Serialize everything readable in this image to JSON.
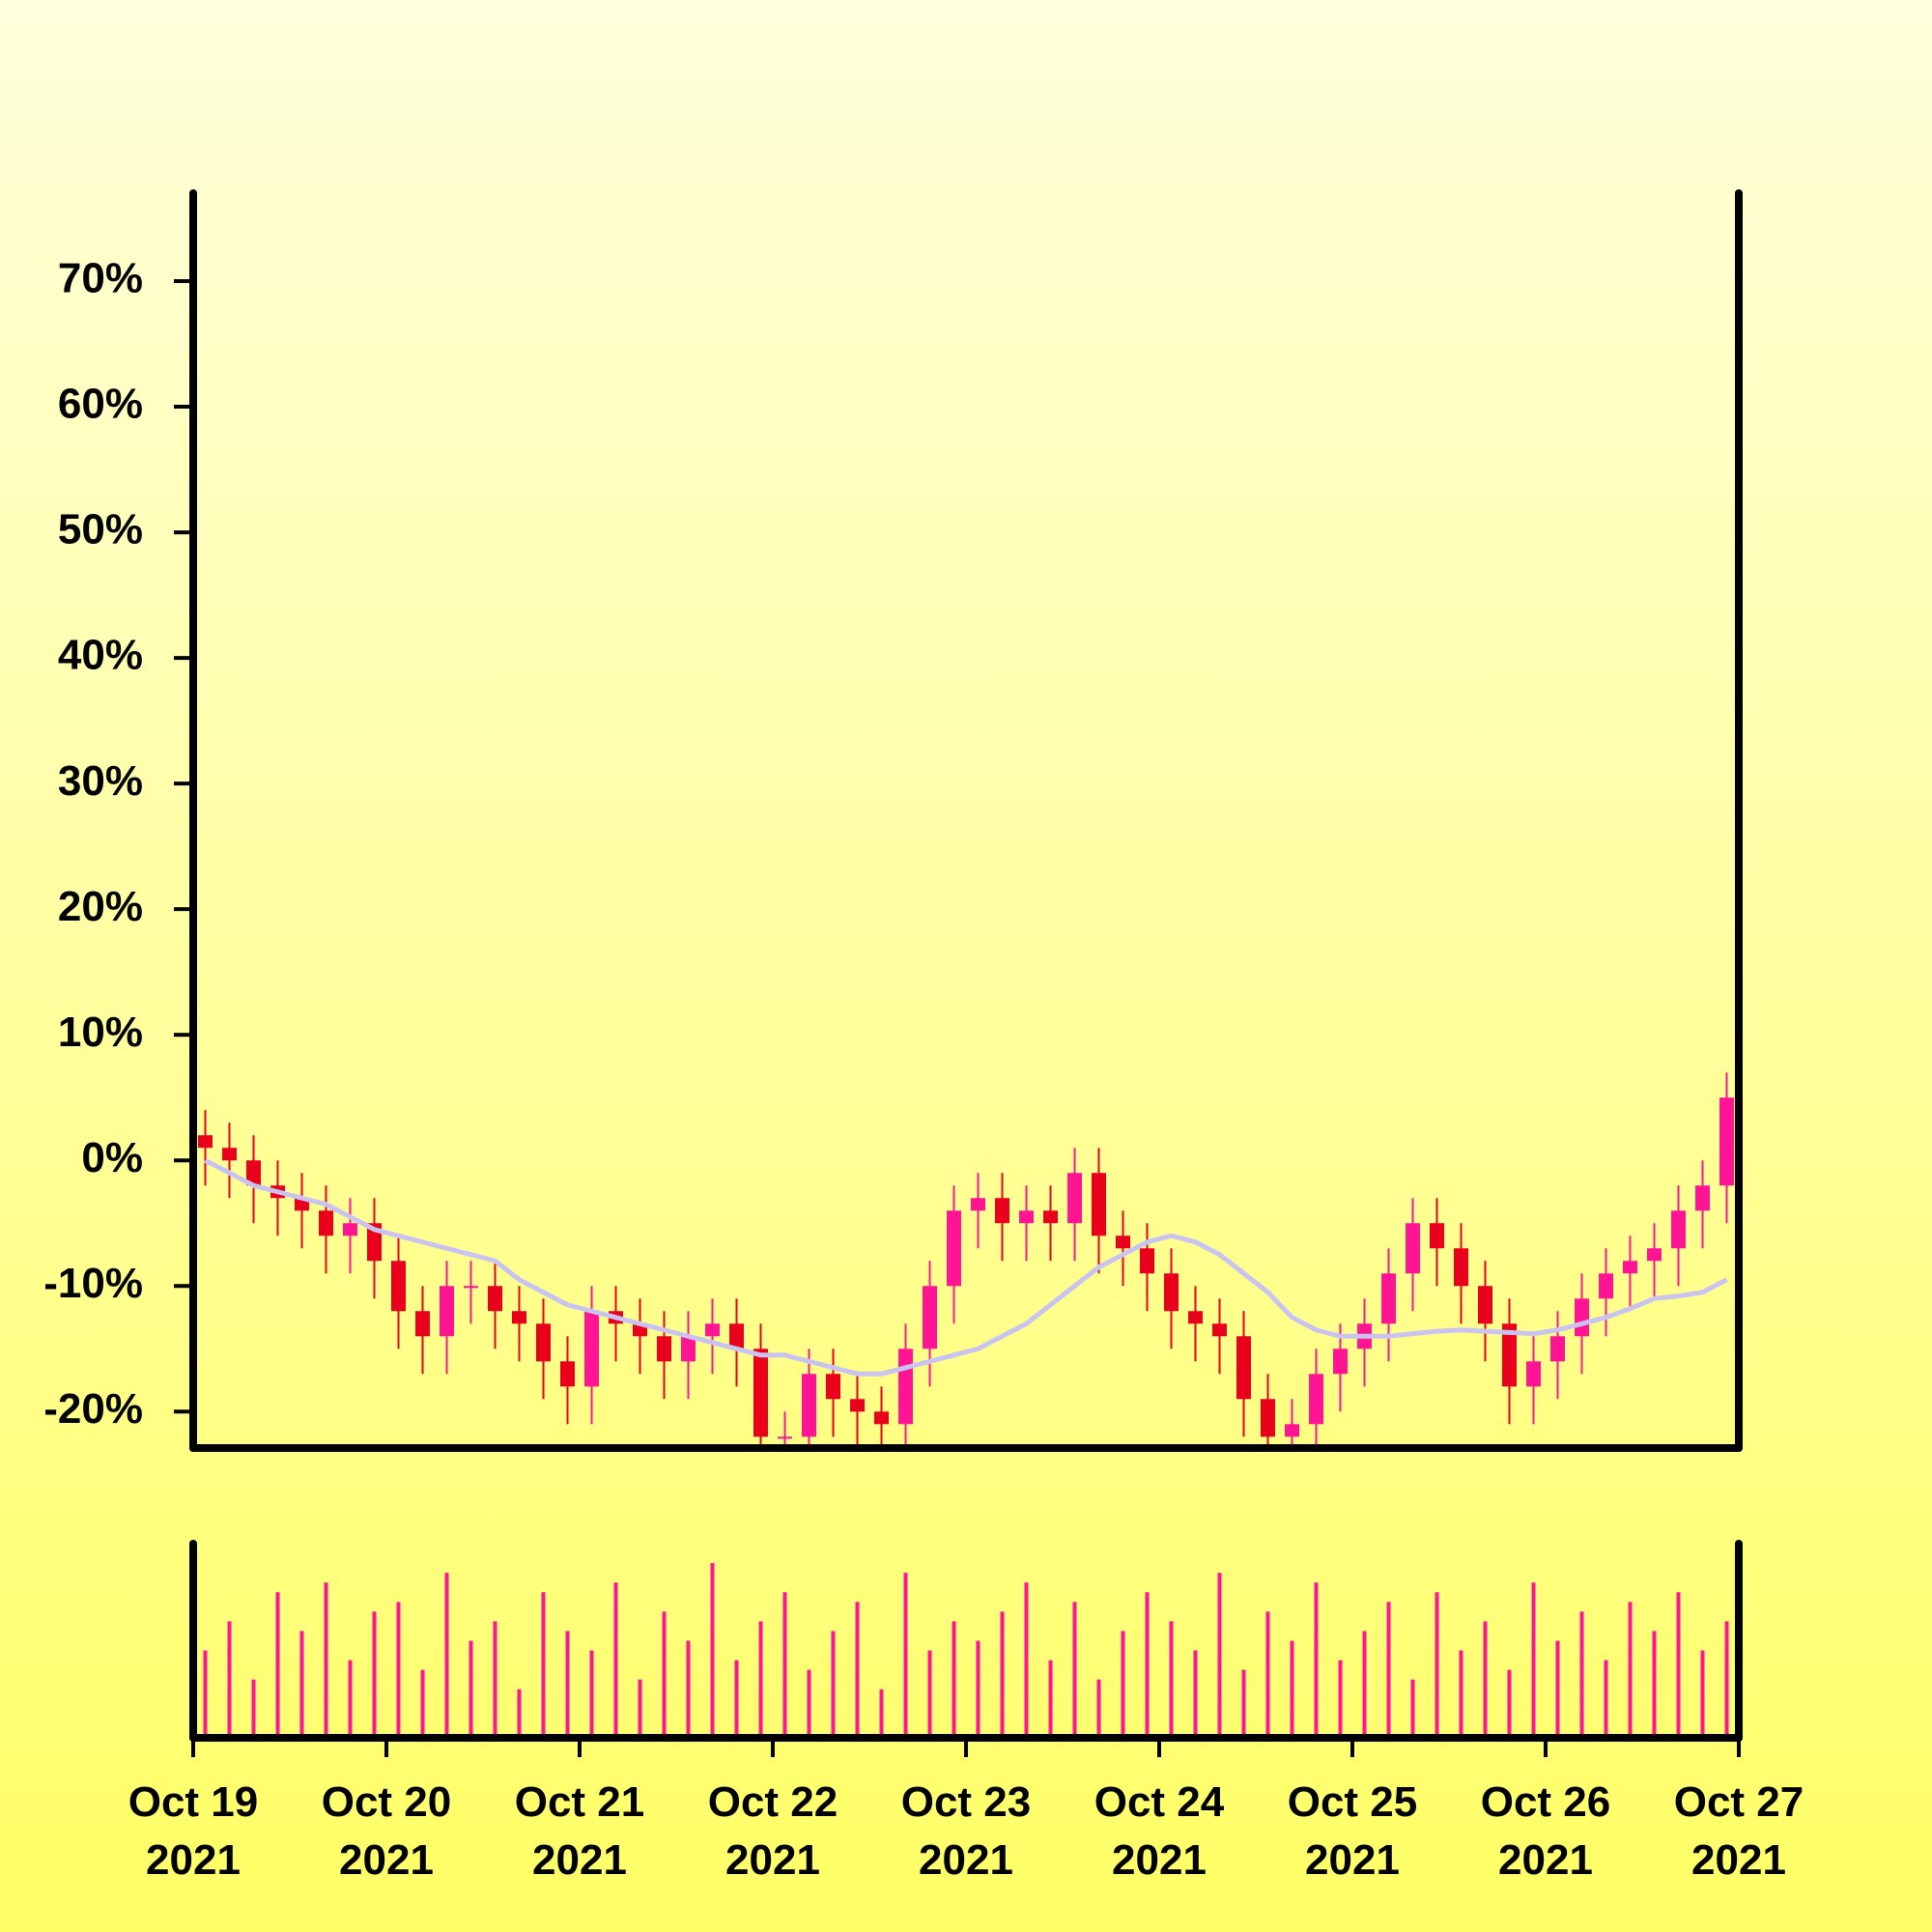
{
  "chart_data": {
    "type": "candlestick",
    "x": [
      "2021-10-19 00:00",
      "2021-10-19 03:00",
      "2021-10-19 06:00",
      "2021-10-19 09:00",
      "2021-10-19 12:00",
      "2021-10-19 15:00",
      "2021-10-19 18:00",
      "2021-10-19 21:00",
      "2021-10-20 00:00",
      "2021-10-20 03:00",
      "2021-10-20 06:00",
      "2021-10-20 09:00",
      "2021-10-20 12:00",
      "2021-10-20 15:00",
      "2021-10-20 18:00",
      "2021-10-20 21:00",
      "2021-10-21 00:00",
      "2021-10-21 03:00",
      "2021-10-21 06:00",
      "2021-10-21 09:00",
      "2021-10-21 12:00",
      "2021-10-21 15:00",
      "2021-10-21 18:00",
      "2021-10-21 21:00",
      "2021-10-22 00:00",
      "2021-10-22 03:00",
      "2021-10-22 06:00",
      "2021-10-22 09:00",
      "2021-10-22 12:00",
      "2021-10-22 15:00",
      "2021-10-22 18:00",
      "2021-10-22 21:00",
      "2021-10-23 00:00",
      "2021-10-23 03:00",
      "2021-10-23 06:00",
      "2021-10-23 09:00",
      "2021-10-23 12:00",
      "2021-10-23 15:00",
      "2021-10-23 18:00",
      "2021-10-23 21:00",
      "2021-10-24 00:00",
      "2021-10-24 03:00",
      "2021-10-24 06:00",
      "2021-10-24 09:00",
      "2021-10-24 12:00",
      "2021-10-24 15:00",
      "2021-10-24 18:00",
      "2021-10-24 21:00",
      "2021-10-25 00:00",
      "2021-10-25 03:00",
      "2021-10-25 06:00",
      "2021-10-25 09:00",
      "2021-10-25 12:00",
      "2021-10-25 15:00",
      "2021-10-25 18:00",
      "2021-10-25 21:00",
      "2021-10-26 00:00",
      "2021-10-26 03:00",
      "2021-10-26 06:00",
      "2021-10-26 09:00",
      "2021-10-26 12:00",
      "2021-10-26 15:00",
      "2021-10-26 18:00",
      "2021-10-26 21:00"
    ],
    "open": [
      2,
      1,
      0,
      -2,
      -3,
      -4,
      -6,
      -5,
      -8,
      -12,
      -14,
      -10,
      -10,
      -12,
      -13,
      -16,
      -18,
      -12,
      -13,
      -14,
      -16,
      -14,
      -13,
      -15,
      -22,
      -22,
      -17,
      -19,
      -20,
      -21,
      -15,
      -10,
      -4,
      -3,
      -5,
      -4,
      -5,
      -1,
      -6,
      -7,
      -9,
      -12,
      -13,
      -14,
      -19,
      -22,
      -21,
      -17,
      -15,
      -13,
      -9,
      -5,
      -7,
      -10,
      -13,
      -18,
      -16,
      -14,
      -11,
      -9,
      -8,
      -7,
      -4,
      -2
    ],
    "high": [
      4,
      3,
      2,
      0,
      -1,
      -2,
      -3,
      -3,
      -6,
      -10,
      -8,
      -8,
      -8,
      -10,
      -11,
      -14,
      -10,
      -10,
      -11,
      -12,
      -12,
      -11,
      -11,
      -13,
      -20,
      -15,
      -15,
      -17,
      -18,
      -13,
      -8,
      -2,
      -1,
      -1,
      -2,
      -2,
      1,
      1,
      -4,
      -5,
      -7,
      -10,
      -11,
      -12,
      -17,
      -19,
      -15,
      -13,
      -11,
      -7,
      -3,
      -3,
      -5,
      -8,
      -11,
      -14,
      -12,
      -9,
      -7,
      -6,
      -5,
      -2,
      0,
      7
    ],
    "low": [
      -2,
      -3,
      -5,
      -6,
      -7,
      -9,
      -9,
      -11,
      -15,
      -17,
      -17,
      -13,
      -15,
      -16,
      -19,
      -21,
      -21,
      -16,
      -17,
      -19,
      -19,
      -17,
      -18,
      -25,
      -25,
      -25,
      -22,
      -23,
      -24,
      -24,
      -18,
      -13,
      -7,
      -8,
      -8,
      -8,
      -8,
      -9,
      -10,
      -12,
      -15,
      -16,
      -17,
      -22,
      -25,
      -25,
      -24,
      -20,
      -18,
      -16,
      -12,
      -10,
      -13,
      -16,
      -21,
      -21,
      -19,
      -17,
      -14,
      -12,
      -11,
      -10,
      -7,
      -5
    ],
    "close": [
      1,
      0,
      -2,
      -3,
      -4,
      -6,
      -5,
      -8,
      -12,
      -14,
      -10,
      -10,
      -12,
      -13,
      -16,
      -18,
      -12,
      -13,
      -14,
      -16,
      -14,
      -13,
      -15,
      -22,
      -22,
      -17,
      -19,
      -20,
      -21,
      -15,
      -10,
      -4,
      -3,
      -5,
      -4,
      -5,
      -1,
      -6,
      -7,
      -9,
      -12,
      -13,
      -14,
      -19,
      -22,
      -21,
      -17,
      -15,
      -13,
      -9,
      -5,
      -7,
      -10,
      -13,
      -18,
      -16,
      -14,
      -11,
      -9,
      -8,
      -7,
      -4,
      -2,
      5
    ],
    "moving_average": [
      0,
      -1,
      -2,
      -2.5,
      -3,
      -3.5,
      -4.5,
      -5.5,
      -6,
      -6.5,
      -7,
      -7.5,
      -8,
      -9.5,
      -10.5,
      -11.5,
      -12,
      -12.5,
      -13,
      -13.5,
      -14,
      -14.5,
      -15,
      -15.5,
      -15.5,
      -16,
      -16.5,
      -17,
      -17,
      -16.5,
      -16,
      -15.5,
      -15,
      -14,
      -13,
      -11.5,
      -10,
      -8.5,
      -7.5,
      -6.5,
      -6,
      -6.5,
      -7.5,
      -9,
      -10.5,
      -12.5,
      -13.5,
      -14,
      -14,
      -14,
      -13.8,
      -13.6,
      -13.5,
      -13.6,
      -13.7,
      -13.8,
      -13.5,
      -13,
      -12.5,
      -11.8,
      -11,
      -10.8,
      -10.5,
      -9.5
    ],
    "volume": [
      45,
      60,
      30,
      75,
      55,
      80,
      40,
      65,
      70,
      35,
      85,
      50,
      60,
      25,
      75,
      55,
      45,
      80,
      30,
      65,
      50,
      90,
      40,
      60,
      75,
      35,
      55,
      70,
      25,
      85,
      45,
      60,
      50,
      65,
      80,
      40,
      70,
      30,
      55,
      75,
      60,
      45,
      85,
      35,
      65,
      50,
      80,
      40,
      55,
      70,
      30,
      75,
      45,
      60,
      35,
      80,
      50,
      65,
      40,
      70,
      55,
      75,
      45,
      60
    ],
    "up_color": "#ff1493",
    "down_color": "#e8001c",
    "ma_color": "#c9c3f2",
    "volume_color": "#ff1493",
    "xlim": [
      "2021-10-19 00:00",
      "2021-10-27 00:00"
    ],
    "xticks": [
      {
        "value": "2021-10-19 00:00",
        "label": "Oct 19 2021"
      },
      {
        "value": "2021-10-20 00:00",
        "label": "Oct 20 2021"
      },
      {
        "value": "2021-10-21 00:00",
        "label": "Oct 21 2021"
      },
      {
        "value": "2021-10-22 00:00",
        "label": "Oct 22 2021"
      },
      {
        "value": "2021-10-23 00:00",
        "label": "Oct 23 2021"
      },
      {
        "value": "2021-10-24 00:00",
        "label": "Oct 24 2021"
      },
      {
        "value": "2021-10-25 00:00",
        "label": "Oct 25 2021"
      },
      {
        "value": "2021-10-26 00:00",
        "label": "Oct 26 2021"
      },
      {
        "value": "2021-10-27 00:00",
        "label": "Oct 27 2021"
      }
    ],
    "ylim": [
      -22.9,
      77
    ],
    "yticks": [
      {
        "value": -20,
        "label": "-20%"
      },
      {
        "value": -10,
        "label": "-10%"
      },
      {
        "value": 0,
        "label": "0%"
      },
      {
        "value": 10,
        "label": "10%"
      },
      {
        "value": 20,
        "label": "20%"
      },
      {
        "value": 30,
        "label": "30%"
      },
      {
        "value": 40,
        "label": "40%"
      },
      {
        "value": 50,
        "label": "50%"
      },
      {
        "value": 60,
        "label": "60%"
      },
      {
        "value": 70,
        "label": "70%"
      }
    ],
    "volume_lim": [
      0,
      100
    ]
  }
}
